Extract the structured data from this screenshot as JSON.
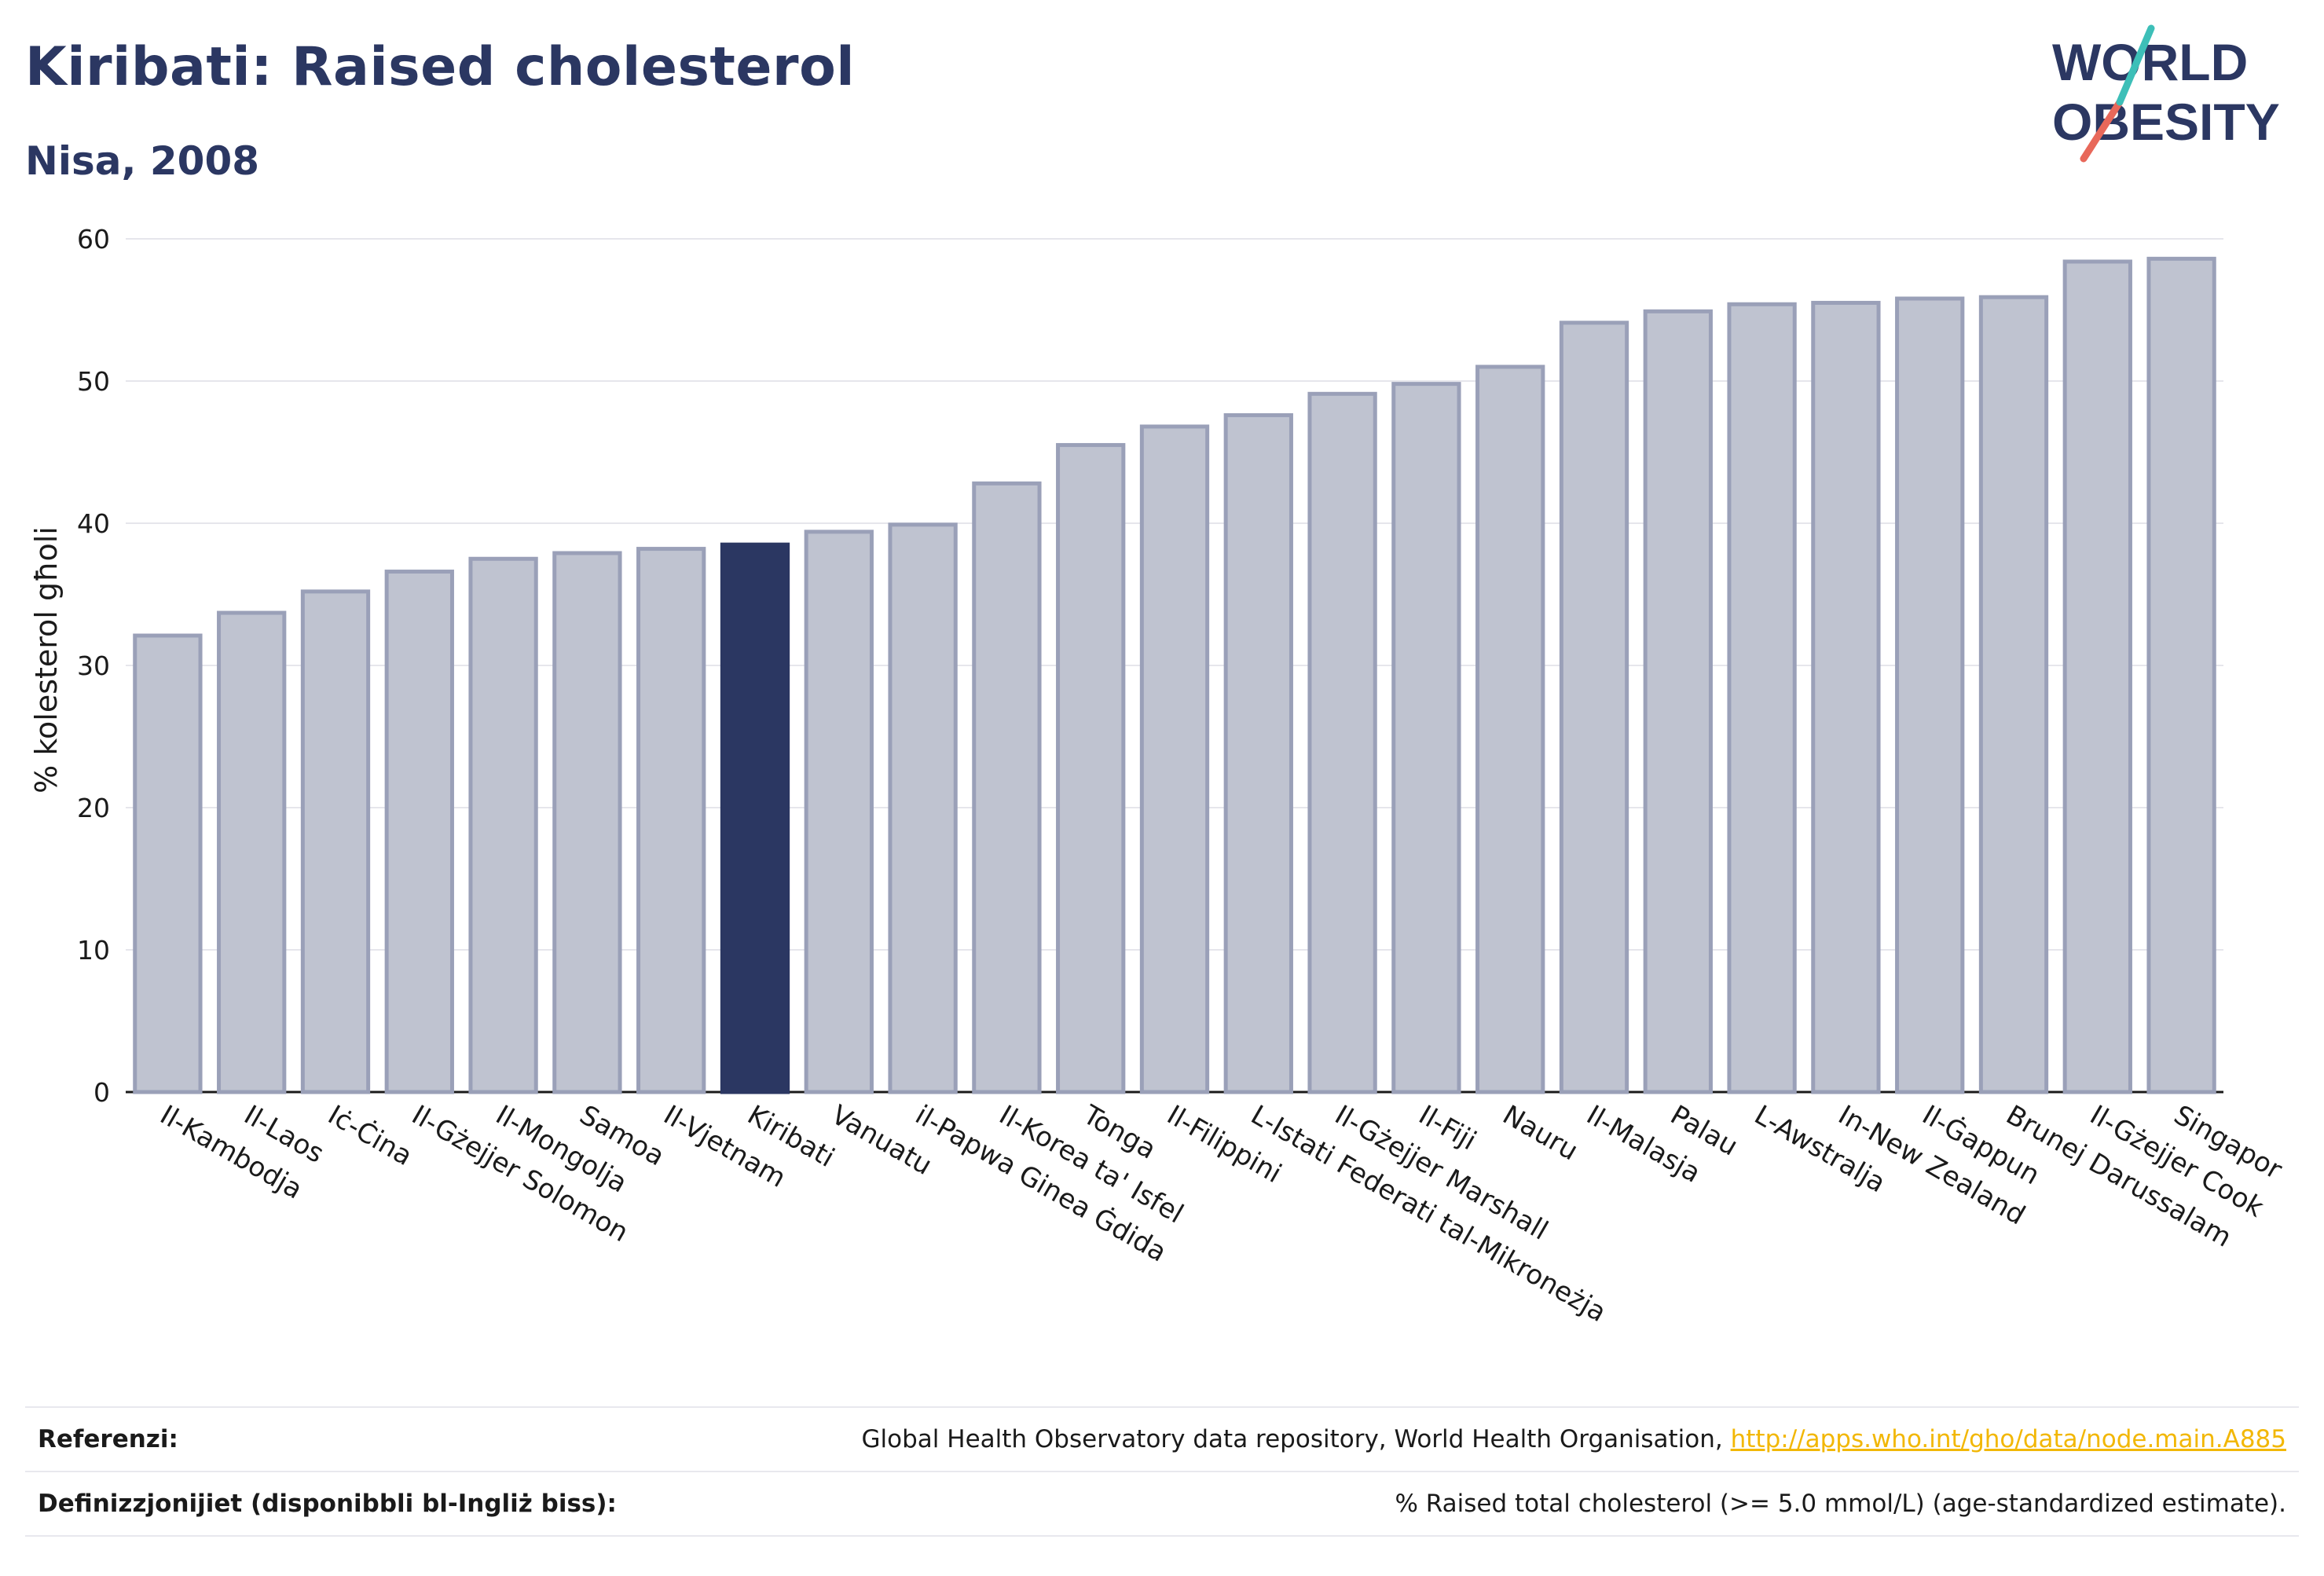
{
  "header": {
    "title": "Kiribati: Raised cholesterol",
    "subtitle": "Nisa, 2008"
  },
  "logo": {
    "line1": "WORLD",
    "line2": "OBESITY",
    "colors": {
      "text": "#2b3762",
      "slash_teal": "#3dbfb8",
      "slash_coral": "#e8685a"
    }
  },
  "chart_data": {
    "type": "bar",
    "title": "Kiribati: Raised cholesterol",
    "subtitle": "Nisa, 2008",
    "xlabel": "",
    "ylabel": "% kolesterol għoli",
    "ylim": [
      0,
      60
    ],
    "yticks": [
      0,
      10,
      20,
      30,
      40,
      50,
      60
    ],
    "grid": true,
    "highlight": "Kiribati",
    "colors": {
      "bar": "#bfc3d0",
      "bar_edge": "#9aa0b8",
      "highlight": "#2b3762"
    },
    "categories": [
      "Il-Kambodja",
      "Il-Laos",
      "Iċ-Ċina",
      "Il-Gżejjer Solomon",
      "Il-Mongolja",
      "Samoa",
      "Il-Vjetnam",
      "Kiribati",
      "Vanuatu",
      "il-Papwa Ginea Ġdida",
      "Il-Korea ta' Isfel",
      "Tonga",
      "Il-Filippini",
      "L-Istati Federati tal-Mikroneżja",
      "Il-Gżejjer Marshall",
      "Il-Fiji",
      "Nauru",
      "Il-Malasja",
      "Palau",
      "L-Awstralja",
      "In-New Zealand",
      "Il-Ġappun",
      "Brunej Darussalam",
      "Il-Gżejjer Cook",
      "Singapor"
    ],
    "values": [
      32.1,
      33.7,
      35.2,
      36.6,
      37.5,
      37.9,
      38.2,
      38.5,
      39.4,
      39.9,
      42.8,
      45.5,
      46.8,
      47.6,
      49.1,
      49.8,
      51.0,
      54.1,
      54.9,
      55.4,
      55.5,
      55.8,
      55.9,
      58.4,
      58.6
    ]
  },
  "footer": {
    "references_label": "Referenzi:",
    "references_text": "Global Health Observatory data repository, World Health Organisation, ",
    "references_link": "http://apps.who.int/gho/data/node.main.A885",
    "definitions_label": "Definizzjonijiet (disponibbli bl-Ingliż biss):",
    "definitions_text": "% Raised total cholesterol (>= 5.0 mmol/L) (age-standardized estimate)."
  }
}
